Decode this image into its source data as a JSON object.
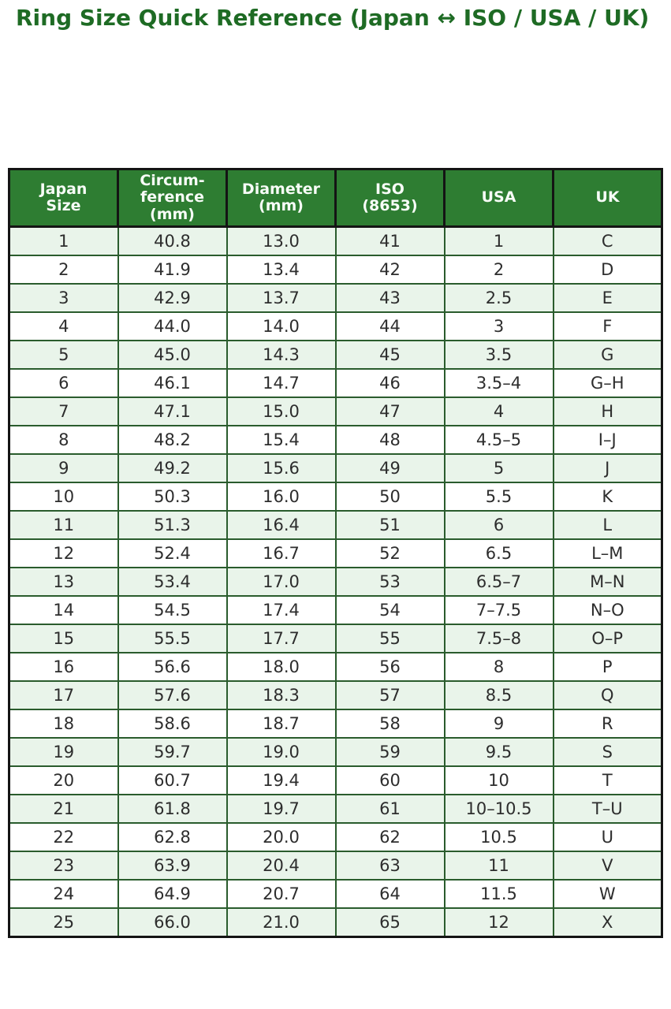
{
  "title": "Ring Size Quick Reference (Japan ↔ ISO / USA / UK)",
  "chart_data": {
    "type": "table",
    "title": "Ring Size Quick Reference (Japan ↔ ISO / USA / UK)",
    "columns": [
      "Japan\nSize",
      "Circum-\nference\n(mm)",
      "Diameter\n(mm)",
      "ISO\n(8653)",
      "USA",
      "UK"
    ],
    "rows": [
      [
        "1",
        "40.8",
        "13.0",
        "41",
        "1",
        "C"
      ],
      [
        "2",
        "41.9",
        "13.4",
        "42",
        "2",
        "D"
      ],
      [
        "3",
        "42.9",
        "13.7",
        "43",
        "2.5",
        "E"
      ],
      [
        "4",
        "44.0",
        "14.0",
        "44",
        "3",
        "F"
      ],
      [
        "5",
        "45.0",
        "14.3",
        "45",
        "3.5",
        "G"
      ],
      [
        "6",
        "46.1",
        "14.7",
        "46",
        "3.5–4",
        "G–H"
      ],
      [
        "7",
        "47.1",
        "15.0",
        "47",
        "4",
        "H"
      ],
      [
        "8",
        "48.2",
        "15.4",
        "48",
        "4.5–5",
        "I–J"
      ],
      [
        "9",
        "49.2",
        "15.6",
        "49",
        "5",
        "J"
      ],
      [
        "10",
        "50.3",
        "16.0",
        "50",
        "5.5",
        "K"
      ],
      [
        "11",
        "51.3",
        "16.4",
        "51",
        "6",
        "L"
      ],
      [
        "12",
        "52.4",
        "16.7",
        "52",
        "6.5",
        "L–M"
      ],
      [
        "13",
        "53.4",
        "17.0",
        "53",
        "6.5–7",
        "M–N"
      ],
      [
        "14",
        "54.5",
        "17.4",
        "54",
        "7–7.5",
        "N–O"
      ],
      [
        "15",
        "55.5",
        "17.7",
        "55",
        "7.5–8",
        "O–P"
      ],
      [
        "16",
        "56.6",
        "18.0",
        "56",
        "8",
        "P"
      ],
      [
        "17",
        "57.6",
        "18.3",
        "57",
        "8.5",
        "Q"
      ],
      [
        "18",
        "58.6",
        "18.7",
        "58",
        "9",
        "R"
      ],
      [
        "19",
        "59.7",
        "19.0",
        "59",
        "9.5",
        "S"
      ],
      [
        "20",
        "60.7",
        "19.4",
        "60",
        "10",
        "T"
      ],
      [
        "21",
        "61.8",
        "19.7",
        "61",
        "10–10.5",
        "T–U"
      ],
      [
        "22",
        "62.8",
        "20.0",
        "62",
        "10.5",
        "U"
      ],
      [
        "23",
        "63.9",
        "20.4",
        "63",
        "11",
        "V"
      ],
      [
        "24",
        "64.9",
        "20.7",
        "64",
        "11.5",
        "W"
      ],
      [
        "25",
        "66.0",
        "21.0",
        "65",
        "12",
        "X"
      ]
    ],
    "layout": {
      "grid": true,
      "header_position": "top",
      "row_striping": "odd-rows-light-green"
    },
    "colors": {
      "title_text": "#1e6b24",
      "header_background": "#2e7d32",
      "header_text": "#f7fcf7",
      "row_alternate_background": "#e9f4ea",
      "row_background": "#ffffff",
      "outer_border": "#141414",
      "inner_border": "#2a5c2d",
      "cell_text": "#2d2d2d"
    }
  }
}
